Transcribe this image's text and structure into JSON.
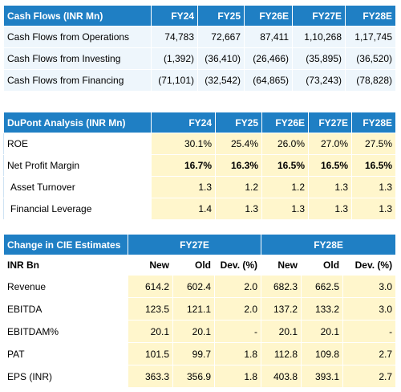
{
  "cash_flows": {
    "title": "Cash Flows (INR Mn)",
    "columns": [
      "FY24",
      "FY25",
      "FY26E",
      "FY27E",
      "FY28E"
    ],
    "rows": [
      {
        "label": "Cash Flows from Operations",
        "values": [
          "74,783",
          "72,667",
          "87,411",
          "1,10,268",
          "1,17,745"
        ]
      },
      {
        "label": "Cash Flows from Investing",
        "values": [
          "(1,392)",
          "(36,410)",
          "(26,466)",
          "(35,895)",
          "(36,520)"
        ]
      },
      {
        "label": "Cash Flows from Financing",
        "values": [
          "(71,101)",
          "(32,542)",
          "(64,865)",
          "(73,243)",
          "(78,828)"
        ]
      }
    ]
  },
  "dupont": {
    "title": "DuPont Analysis (INR Mn)",
    "columns": [
      "FY24",
      "FY25",
      "FY26E",
      "FY27E",
      "FY28E"
    ],
    "rows": [
      {
        "label": "ROE",
        "values": [
          "30.1%",
          "25.4%",
          "26.0%",
          "27.0%",
          "27.5%"
        ]
      },
      {
        "label": "Net Profit Margin",
        "values": [
          "16.7%",
          "16.3%",
          "16.5%",
          "16.5%",
          "16.5%"
        ]
      },
      {
        "label": "Asset Turnover",
        "values": [
          "1.3",
          "1.2",
          "1.2",
          "1.3",
          "1.3"
        ]
      },
      {
        "label": "Financial Leverage",
        "values": [
          "1.4",
          "1.3",
          "1.3",
          "1.3",
          "1.3"
        ]
      }
    ]
  },
  "cie": {
    "title": "Change in CIE Estimates",
    "group1": "FY27E",
    "group2": "FY28E",
    "unit_label": "INR Bn",
    "subcols": [
      "New",
      "Old",
      "Dev. (%)",
      "New",
      "Old",
      "Dev. (%)"
    ],
    "rows": [
      {
        "label": "Revenue",
        "values": [
          "614.2",
          "602.4",
          "2.0",
          "682.3",
          "662.5",
          "3.0"
        ]
      },
      {
        "label": "EBITDA",
        "values": [
          "123.5",
          "121.1",
          "2.0",
          "137.2",
          "133.2",
          "3.0"
        ]
      },
      {
        "label": "EBITDAM%",
        "values": [
          "20.1",
          "20.1",
          "-",
          "20.1",
          "20.1",
          "-"
        ]
      },
      {
        "label": "PAT",
        "values": [
          "101.5",
          "99.7",
          "1.8",
          "112.8",
          "109.8",
          "2.7"
        ]
      },
      {
        "label": "EPS (INR)",
        "values": [
          "363.3",
          "356.9",
          "1.8",
          "403.8",
          "393.1",
          "2.7"
        ]
      }
    ]
  }
}
